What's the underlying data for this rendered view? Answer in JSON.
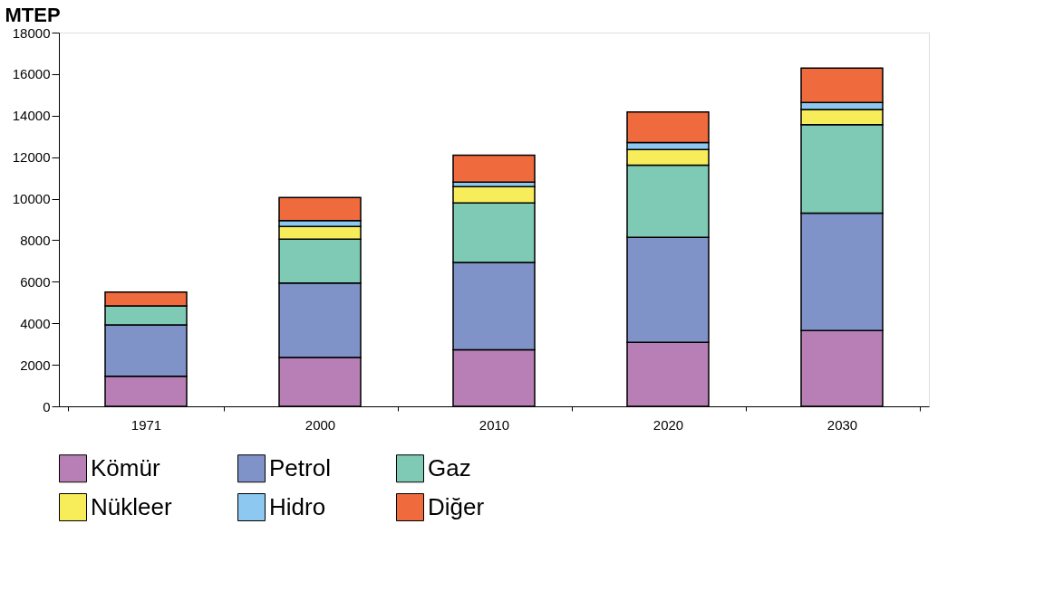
{
  "chart_data": {
    "type": "bar",
    "stacked": true,
    "ylabel": "MTEP",
    "categories": [
      "1971",
      "2000",
      "2010",
      "2020",
      "2030"
    ],
    "series": [
      {
        "name": "Kömür",
        "color": "#b77fb5",
        "values": [
          1450,
          2350,
          2720,
          3080,
          3650
        ]
      },
      {
        "name": "Petrol",
        "color": "#7f93c8",
        "values": [
          2470,
          3590,
          4210,
          5060,
          5660
        ]
      },
      {
        "name": "Gaz",
        "color": "#7fcab5",
        "values": [
          920,
          2110,
          2870,
          3480,
          4250
        ]
      },
      {
        "name": "Nükleer",
        "color": "#f7ed5a",
        "values": [
          null,
          610,
          780,
          750,
          740
        ]
      },
      {
        "name": "Hidro",
        "color": "#8cc8f0",
        "values": [
          null,
          290,
          220,
          330,
          330
        ]
      },
      {
        "name": "Diğer",
        "color": "#ef6a3c",
        "values": [
          660,
          1110,
          1290,
          1480,
          1660
        ]
      }
    ],
    "ylim": [
      0,
      18000
    ],
    "yticks": [
      0,
      2000,
      4000,
      6000,
      8000,
      10000,
      12000,
      14000,
      16000,
      18000
    ],
    "grid": false,
    "legend": "bottom"
  }
}
